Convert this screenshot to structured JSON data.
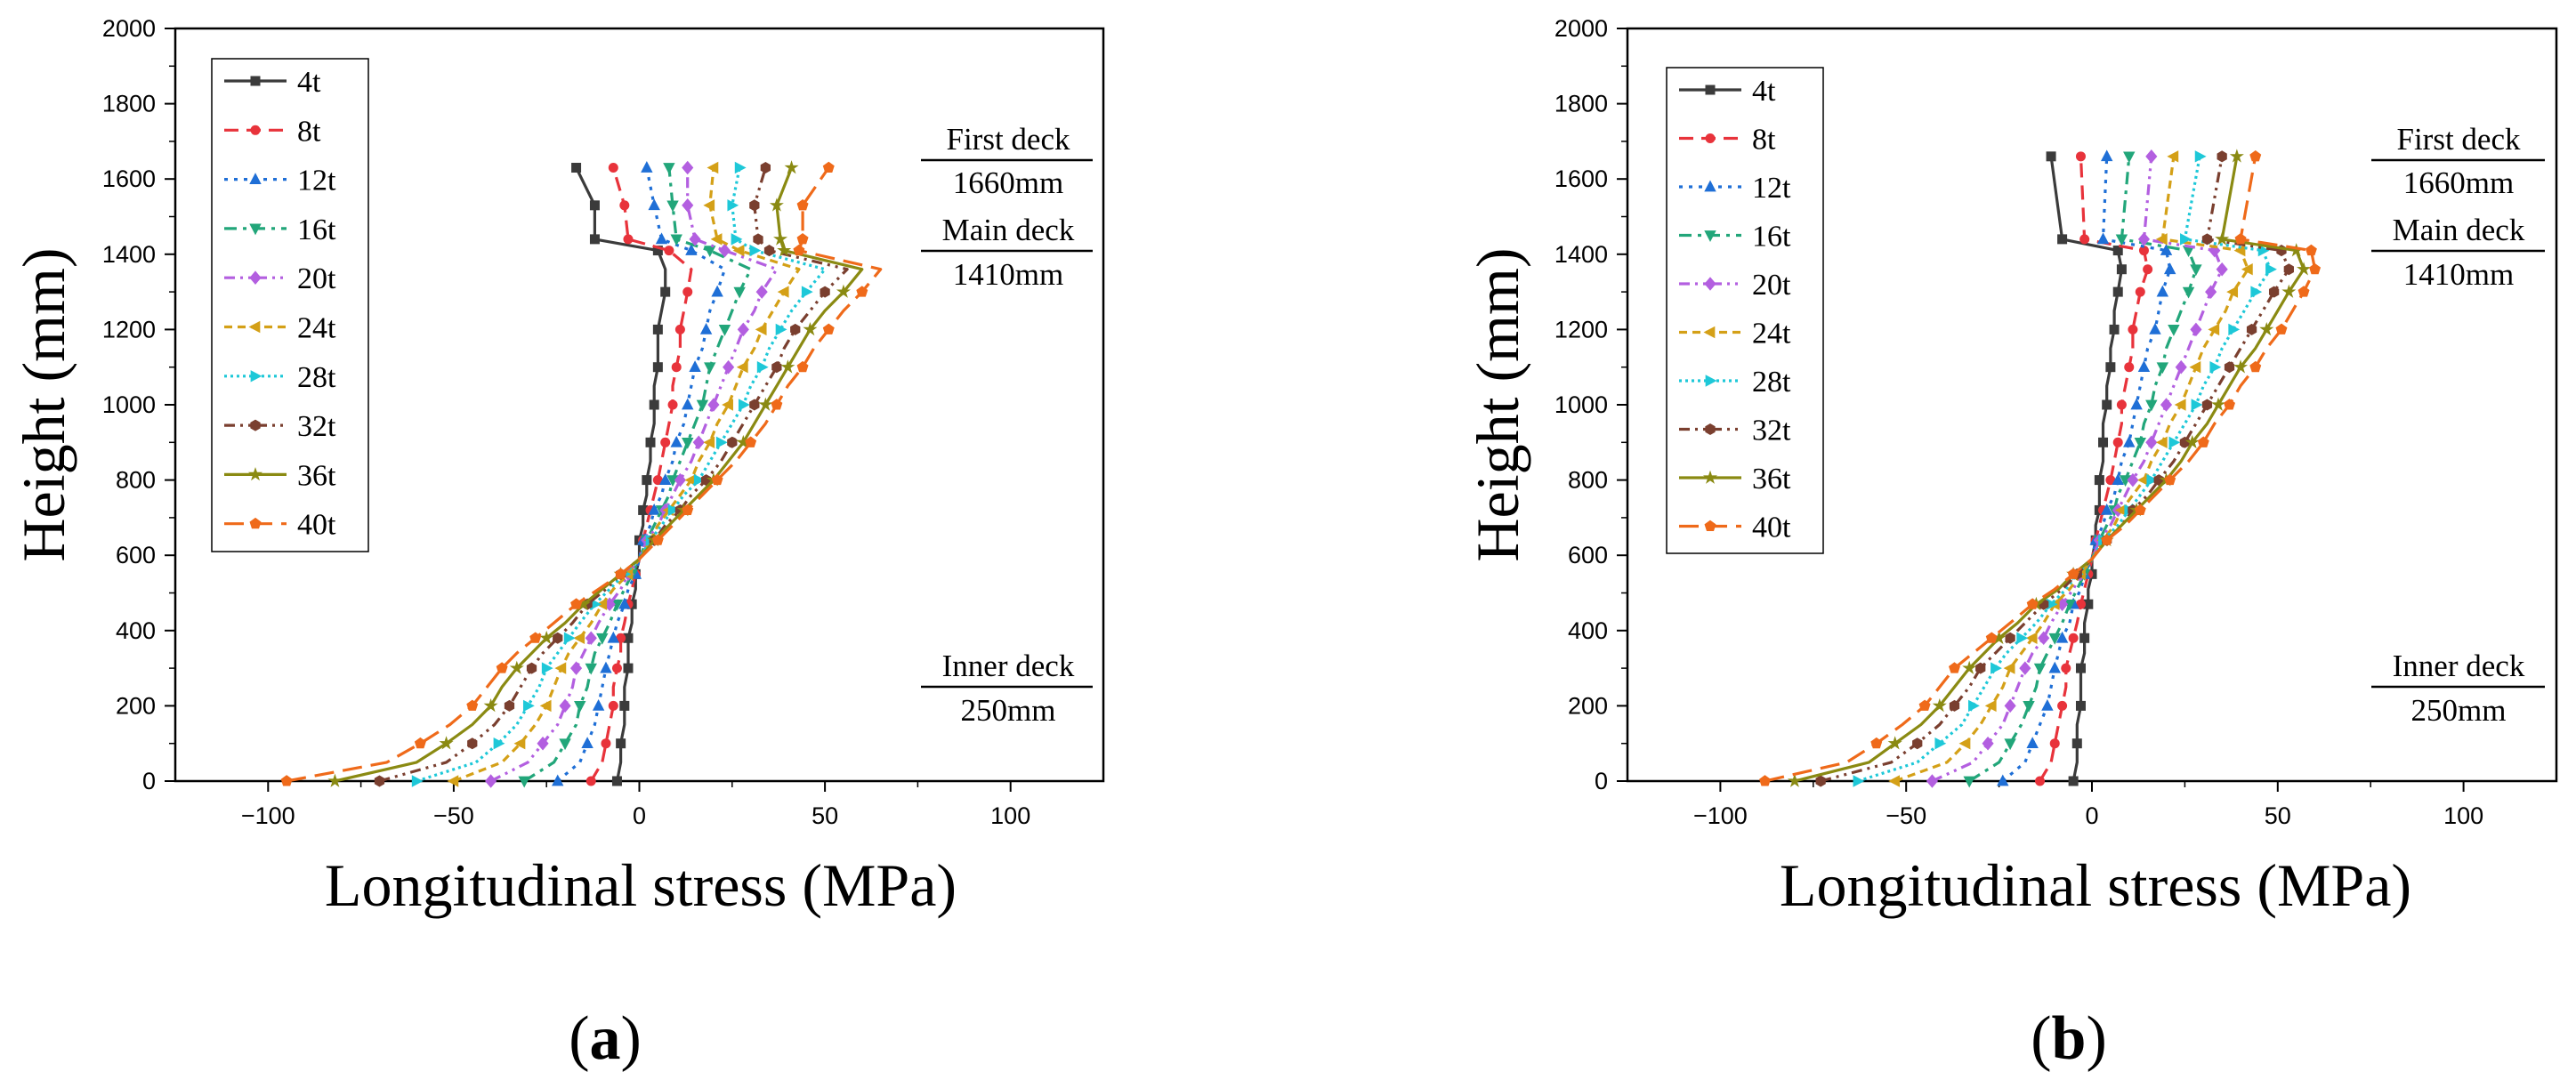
{
  "panels": [
    {
      "label_open": "(",
      "label_letter": "a",
      "label_close": ")",
      "chart_data": {
        "type": "line",
        "title": "",
        "xlabel": "Longitudinal stress (MPa)",
        "ylabel": "Height (mm)",
        "xlim": [
          -125,
          125
        ],
        "ylim": [
          0,
          2000
        ],
        "xticks": [
          -100,
          -50,
          0,
          50,
          100
        ],
        "yticks": [
          0,
          200,
          400,
          600,
          800,
          1000,
          1200,
          1400,
          1600,
          1800,
          2000
        ],
        "xtick_labels": [
          "−100",
          "−50",
          "0",
          "50",
          "100"
        ],
        "ytick_labels": [
          "0",
          "200",
          "400",
          "600",
          "800",
          "1000",
          "1200",
          "1400",
          "1600",
          "1800",
          "2000"
        ],
        "heights": [
          0,
          50,
          100,
          150,
          200,
          250,
          300,
          340,
          380,
          420,
          470,
          510,
          550,
          590,
          640,
          680,
          720,
          760,
          800,
          850,
          900,
          950,
          1000,
          1050,
          1100,
          1150,
          1200,
          1250,
          1300,
          1360,
          1410,
          1440,
          1530,
          1630
        ],
        "legend_position": "top-left",
        "series": [
          {
            "name": "4t",
            "color": "#3b3b3b",
            "dash": "solid",
            "marker": "square",
            "values": [
              -6,
              -5,
              -5,
              -4,
              -4,
              -4,
              -3,
              -3,
              -3,
              -2,
              -2,
              -1,
              -1,
              0,
              0,
              1,
              1,
              2,
              2,
              3,
              3,
              4,
              4,
              4,
              5,
              5,
              5,
              6,
              7,
              7,
              5,
              -12,
              -12,
              -17
            ]
          },
          {
            "name": "8t",
            "color": "#e8333b",
            "dash": "dash",
            "marker": "circle",
            "values": [
              -13,
              -10,
              -9,
              -8,
              -7,
              -7,
              -6,
              -5,
              -5,
              -4,
              -3,
              -2,
              -1,
              0,
              1,
              2,
              3,
              4,
              5,
              6,
              7,
              8,
              9,
              9,
              10,
              11,
              11,
              12,
              13,
              14,
              8,
              -3,
              -4,
              -7
            ]
          },
          {
            "name": "12t",
            "color": "#1f6fd6",
            "dash": "dot",
            "marker": "triangle",
            "values": [
              -22,
              -16,
              -14,
              -12,
              -11,
              -10,
              -9,
              -8,
              -7,
              -6,
              -4,
              -3,
              -1,
              0,
              1,
              3,
              4,
              6,
              7,
              9,
              10,
              12,
              13,
              14,
              15,
              17,
              18,
              19,
              21,
              23,
              14,
              6,
              4,
              2
            ]
          },
          {
            "name": "16t",
            "color": "#22a67a",
            "dash": "dashdot",
            "marker": "tridown",
            "values": [
              -31,
              -23,
              -20,
              -17,
              -16,
              -14,
              -13,
              -12,
              -10,
              -8,
              -6,
              -4,
              -2,
              0,
              2,
              4,
              6,
              8,
              9,
              11,
              13,
              15,
              17,
              18,
              19,
              21,
              23,
              25,
              27,
              30,
              19,
              10,
              9,
              8
            ]
          },
          {
            "name": "20t",
            "color": "#b35fe0",
            "dash": "dashdotdot",
            "marker": "diamond",
            "values": [
              -40,
              -30,
              -26,
              -22,
              -20,
              -18,
              -17,
              -15,
              -13,
              -11,
              -8,
              -5,
              -3,
              0,
              2,
              5,
              7,
              9,
              11,
              14,
              16,
              18,
              20,
              22,
              24,
              26,
              28,
              31,
              33,
              37,
              23,
              15,
              13,
              13
            ]
          },
          {
            "name": "24t",
            "color": "#d4a017",
            "dash": "shortdash",
            "marker": "triangleleft",
            "values": [
              -50,
              -37,
              -32,
              -28,
              -25,
              -23,
              -21,
              -19,
              -16,
              -13,
              -10,
              -7,
              -3,
              0,
              3,
              5,
              8,
              11,
              14,
              16,
              19,
              21,
              24,
              26,
              28,
              31,
              33,
              36,
              39,
              43,
              27,
              21,
              19,
              20
            ]
          },
          {
            "name": "28t",
            "color": "#1ec8d8",
            "dash": "shortdot",
            "marker": "triangleright",
            "values": [
              -60,
              -44,
              -38,
              -33,
              -30,
              -27,
              -25,
              -22,
              -19,
              -16,
              -12,
              -8,
              -4,
              0,
              3,
              6,
              9,
              12,
              16,
              19,
              22,
              25,
              28,
              30,
              33,
              35,
              38,
              41,
              45,
              50,
              31,
              26,
              25,
              27
            ]
          },
          {
            "name": "32t",
            "color": "#7a3f2f",
            "dash": "dashdotdot",
            "marker": "hexagon",
            "values": [
              -70,
              -52,
              -45,
              -39,
              -35,
              -32,
              -29,
              -26,
              -22,
              -18,
              -14,
              -9,
              -5,
              0,
              4,
              7,
              11,
              14,
              18,
              22,
              25,
              28,
              31,
              34,
              37,
              39,
              42,
              46,
              50,
              56,
              35,
              32,
              31,
              34
            ]
          },
          {
            "name": "36t",
            "color": "#8a8a12",
            "dash": "solid",
            "marker": "star",
            "values": [
              -82,
              -60,
              -52,
              -45,
              -40,
              -37,
              -33,
              -29,
              -25,
              -20,
              -15,
              -10,
              -5,
              0,
              4,
              8,
              12,
              16,
              20,
              24,
              28,
              31,
              34,
              37,
              40,
              43,
              46,
              50,
              55,
              60,
              39,
              38,
              37,
              41
            ]
          },
          {
            "name": "40t",
            "color": "#ef6a1a",
            "dash": "longdash",
            "marker": "pentagon",
            "values": [
              -95,
              -68,
              -59,
              -51,
              -45,
              -41,
              -37,
              -33,
              -28,
              -23,
              -17,
              -11,
              -5,
              0,
              5,
              9,
              13,
              17,
              21,
              26,
              30,
              34,
              37,
              40,
              44,
              47,
              51,
              55,
              60,
              65,
              43,
              44,
              44,
              51
            ]
          }
        ]
      },
      "annotations": {
        "first_deck": "First deck",
        "first_deck_height": "1660mm",
        "main_deck": "Main deck",
        "main_deck_height": "1410mm",
        "inner_deck": "Inner deck",
        "inner_deck_height": "250mm"
      }
    },
    {
      "label_open": "(",
      "label_letter": "b",
      "label_close": ")",
      "chart_data": {
        "type": "line",
        "title": "",
        "xlabel": "Longitudinal stress (MPa)",
        "ylabel": "Height (mm)",
        "xlim": [
          -125,
          125
        ],
        "ylim": [
          0,
          2000
        ],
        "xticks": [
          -100,
          -50,
          0,
          50,
          100
        ],
        "yticks": [
          0,
          200,
          400,
          600,
          800,
          1000,
          1200,
          1400,
          1600,
          1800,
          2000
        ],
        "xtick_labels": [
          "−100",
          "−50",
          "0",
          "50",
          "100"
        ],
        "ytick_labels": [
          "0",
          "200",
          "400",
          "600",
          "800",
          "1000",
          "1200",
          "1400",
          "1600",
          "1800",
          "2000"
        ],
        "heights": [
          0,
          50,
          100,
          150,
          200,
          250,
          300,
          340,
          380,
          420,
          470,
          510,
          550,
          590,
          640,
          680,
          720,
          760,
          800,
          850,
          900,
          950,
          1000,
          1050,
          1100,
          1150,
          1200,
          1250,
          1300,
          1360,
          1410,
          1440,
          1660
        ],
        "legend_position": "top-left",
        "series": [
          {
            "name": "4t",
            "color": "#3b3b3b",
            "dash": "solid",
            "marker": "square",
            "values": [
              -5,
              -4,
              -4,
              -4,
              -3,
              -3,
              -3,
              -2,
              -2,
              -2,
              -1,
              -1,
              0,
              0,
              1,
              1,
              2,
              2,
              2,
              3,
              3,
              3,
              4,
              4,
              5,
              5,
              6,
              6,
              7,
              8,
              7,
              -8,
              -11
            ]
          },
          {
            "name": "8t",
            "color": "#e8333b",
            "dash": "dash",
            "marker": "circle",
            "values": [
              -14,
              -11,
              -10,
              -9,
              -8,
              -7,
              -7,
              -6,
              -5,
              -4,
              -3,
              -2,
              -1,
              0,
              1,
              2,
              3,
              4,
              5,
              6,
              7,
              8,
              8,
              9,
              10,
              11,
              11,
              12,
              13,
              15,
              14,
              -2,
              -3
            ]
          },
          {
            "name": "12t",
            "color": "#1f6fd6",
            "dash": "dot",
            "marker": "triangle",
            "values": [
              -24,
              -18,
              -16,
              -14,
              -12,
              -11,
              -10,
              -9,
              -8,
              -6,
              -5,
              -3,
              -2,
              0,
              1,
              3,
              4,
              6,
              7,
              8,
              10,
              11,
              12,
              13,
              14,
              15,
              17,
              18,
              19,
              21,
              20,
              3,
              4
            ]
          },
          {
            "name": "16t",
            "color": "#22a67a",
            "dash": "dashdot",
            "marker": "tridown",
            "values": [
              -33,
              -25,
              -22,
              -19,
              -17,
              -15,
              -14,
              -12,
              -10,
              -8,
              -6,
              -4,
              -2,
              0,
              2,
              4,
              6,
              7,
              9,
              11,
              13,
              14,
              16,
              17,
              19,
              20,
              22,
              24,
              26,
              28,
              26,
              8,
              10
            ]
          },
          {
            "name": "20t",
            "color": "#b35fe0",
            "dash": "dashdotdot",
            "marker": "diamond",
            "values": [
              -43,
              -32,
              -28,
              -24,
              -22,
              -20,
              -18,
              -16,
              -13,
              -11,
              -8,
              -5,
              -3,
              0,
              2,
              5,
              7,
              9,
              11,
              14,
              16,
              18,
              20,
              22,
              24,
              26,
              28,
              30,
              32,
              35,
              33,
              14,
              16
            ]
          },
          {
            "name": "24t",
            "color": "#d4a017",
            "dash": "shortdash",
            "marker": "triangleleft",
            "values": [
              -53,
              -39,
              -34,
              -30,
              -27,
              -24,
              -22,
              -19,
              -16,
              -13,
              -10,
              -6,
              -3,
              0,
              3,
              6,
              8,
              11,
              14,
              16,
              19,
              21,
              24,
              26,
              28,
              30,
              33,
              36,
              38,
              42,
              40,
              19,
              22
            ]
          },
          {
            "name": "28t",
            "color": "#1ec8d8",
            "dash": "shortdot",
            "marker": "triangleright",
            "values": [
              -63,
              -47,
              -41,
              -35,
              -32,
              -29,
              -26,
              -23,
              -19,
              -15,
              -11,
              -7,
              -4,
              0,
              3,
              7,
              10,
              13,
              16,
              19,
              22,
              25,
              28,
              30,
              33,
              35,
              38,
              41,
              44,
              48,
              46,
              25,
              29
            ]
          },
          {
            "name": "32t",
            "color": "#7a3f2f",
            "dash": "dashdotdot",
            "marker": "hexagon",
            "values": [
              -73,
              -54,
              -47,
              -41,
              -37,
              -33,
              -30,
              -26,
              -22,
              -18,
              -13,
              -8,
              -4,
              0,
              4,
              8,
              11,
              15,
              18,
              22,
              25,
              28,
              31,
              34,
              37,
              40,
              43,
              46,
              49,
              53,
              51,
              31,
              35
            ]
          },
          {
            "name": "36t",
            "color": "#8a8a12",
            "dash": "solid",
            "marker": "star",
            "values": [
              -80,
              -60,
              -53,
              -46,
              -41,
              -37,
              -33,
              -29,
              -25,
              -20,
              -15,
              -9,
              -5,
              0,
              4,
              8,
              12,
              16,
              20,
              24,
              27,
              31,
              34,
              37,
              40,
              44,
              47,
              50,
              53,
              57,
              55,
              35,
              39
            ]
          },
          {
            "name": "40t",
            "color": "#ef6a1a",
            "dash": "longdash",
            "marker": "pentagon",
            "values": [
              -88,
              -66,
              -58,
              -51,
              -45,
              -41,
              -37,
              -32,
              -27,
              -22,
              -16,
              -10,
              -5,
              0,
              4,
              9,
              13,
              17,
              21,
              26,
              30,
              33,
              37,
              40,
              44,
              47,
              51,
              54,
              57,
              60,
              59,
              40,
              44
            ]
          }
        ]
      },
      "annotations": {
        "first_deck": "First deck",
        "first_deck_height": "1660mm",
        "main_deck": "Main deck",
        "main_deck_height": "1410mm",
        "inner_deck": "Inner deck",
        "inner_deck_height": "250mm"
      }
    }
  ]
}
